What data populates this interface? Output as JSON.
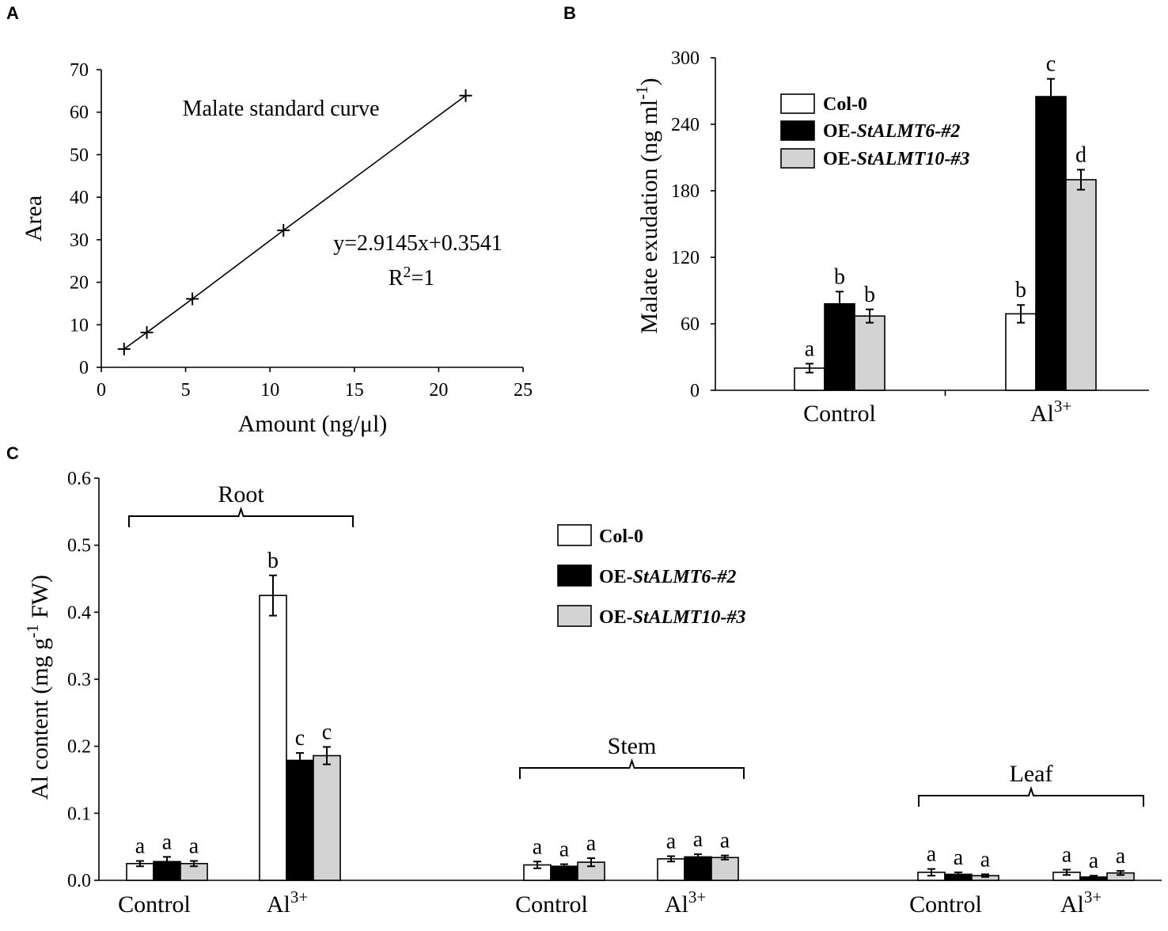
{
  "chart_data": [
    {
      "panel": "A",
      "type": "line",
      "title": "Malate standard curve",
      "xlabel": "Amount (ng/μl)",
      "ylabel": "Area",
      "xlim": [
        0,
        25
      ],
      "ylim": [
        0,
        70
      ],
      "xticks": [
        0,
        5,
        10,
        15,
        20,
        25
      ],
      "yticks": [
        0,
        10,
        20,
        30,
        40,
        50,
        60,
        70
      ],
      "x": [
        1.35,
        2.7,
        5.4,
        10.8,
        21.6
      ],
      "y": [
        4.3,
        8.2,
        16.1,
        32.2,
        63.9
      ],
      "equation": "y=2.9145x+0.3541",
      "r2_base": "R",
      "r2_sup": "2",
      "r2_value": "=1"
    },
    {
      "panel": "B",
      "type": "bar",
      "ylabel_main": "Malate exudation (ng  ml",
      "ylabel_sup": "-1",
      "ylabel_close": ")",
      "ylim": [
        0,
        300
      ],
      "yticks": [
        0,
        60,
        120,
        180,
        240,
        300
      ],
      "categories": [
        {
          "base": "Control",
          "sup": ""
        },
        {
          "base": "Al",
          "sup": "3+"
        }
      ],
      "series": [
        {
          "name_prefix": "Col-0",
          "name_italic": "",
          "color": "#ffffff",
          "values": [
            20,
            69
          ],
          "errors": [
            4,
            8
          ],
          "letters": [
            "a",
            "b"
          ]
        },
        {
          "name_prefix": "OE-",
          "name_italic": "StALMT6-#2",
          "color": "#000000",
          "values": [
            78,
            265
          ],
          "errors": [
            11,
            16
          ],
          "letters": [
            "b",
            "c"
          ]
        },
        {
          "name_prefix": "OE-",
          "name_italic": "StALMT10-#3",
          "color": "#d3d3d3",
          "values": [
            67,
            190
          ],
          "errors": [
            6,
            9
          ],
          "letters": [
            "b",
            "d"
          ]
        }
      ]
    },
    {
      "panel": "C",
      "type": "bar",
      "ylabel_main": "Al content (mg g",
      "ylabel_sup": "-1",
      "ylabel_close": " FW)",
      "ylim": [
        0,
        0.6
      ],
      "yticks": [
        "0.0",
        "0.1",
        "0.2",
        "0.3",
        "0.4",
        "0.5",
        "0.6"
      ],
      "groups": [
        {
          "name": "Root",
          "conditions": [
            {
              "base": "Control",
              "sup": "",
              "values": [
                0.025,
                0.028,
                0.025
              ],
              "errors": [
                0.004,
                0.007,
                0.004
              ],
              "letters": [
                "a",
                "a",
                "a"
              ]
            },
            {
              "base": "Al",
              "sup": "3+",
              "values": [
                0.425,
                0.179,
                0.186
              ],
              "errors": [
                0.03,
                0.011,
                0.013
              ],
              "letters": [
                "b",
                "c",
                "c"
              ]
            }
          ]
        },
        {
          "name": "Stem",
          "conditions": [
            {
              "base": "Control",
              "sup": "",
              "values": [
                0.023,
                0.021,
                0.027
              ],
              "errors": [
                0.005,
                0.003,
                0.006
              ],
              "letters": [
                "a",
                "a",
                "a"
              ]
            },
            {
              "base": "Al",
              "sup": "3+",
              "values": [
                0.032,
                0.035,
                0.034
              ],
              "errors": [
                0.004,
                0.004,
                0.003
              ],
              "letters": [
                "a",
                "a",
                "a"
              ]
            }
          ]
        },
        {
          "name": "Leaf",
          "conditions": [
            {
              "base": "Control",
              "sup": "",
              "values": [
                0.012,
                0.009,
                0.007
              ],
              "errors": [
                0.005,
                0.003,
                0.002
              ],
              "letters": [
                "a",
                "a",
                "a"
              ]
            },
            {
              "base": "Al",
              "sup": "3+",
              "values": [
                0.012,
                0.005,
                0.011
              ],
              "errors": [
                0.004,
                0.002,
                0.003
              ],
              "letters": [
                "a",
                "a",
                "a"
              ]
            }
          ]
        }
      ],
      "series": [
        {
          "name_prefix": "Col-0",
          "name_italic": "",
          "color": "#ffffff"
        },
        {
          "name_prefix": "OE-",
          "name_italic": "StALMT6-#2",
          "color": "#000000"
        },
        {
          "name_prefix": "OE-",
          "name_italic": "StALMT10-#3",
          "color": "#d3d3d3"
        }
      ]
    }
  ]
}
